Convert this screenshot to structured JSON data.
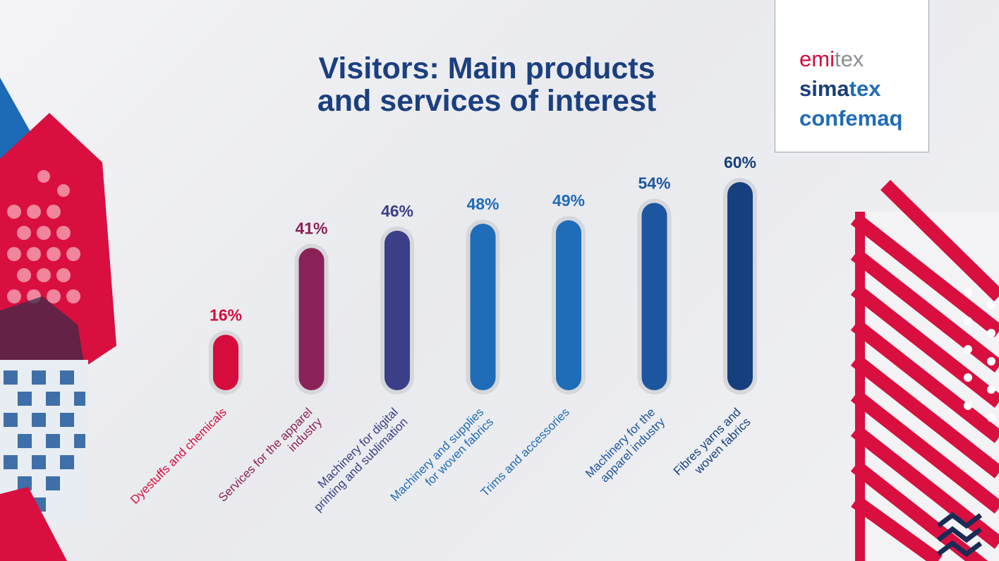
{
  "title": {
    "line1": "Visitors: Main products",
    "line2": "and services of interest"
  },
  "logo": {
    "line1_a": "emi",
    "line1_b": "tex",
    "line2_a": "sima",
    "line2_b": "tex",
    "line3": "confemaq"
  },
  "chart_data": {
    "type": "bar",
    "title": "Visitors: Main products and services of interest",
    "unit": "%",
    "ylim": [
      0,
      60
    ],
    "grid": false,
    "categories": [
      [
        "Dyestuffs and chemicals"
      ],
      [
        "Services for the apparel",
        "industry"
      ],
      [
        "Machinery for digital",
        "printing and sublimation"
      ],
      [
        "Machinery and supplies",
        "for woven fabrics"
      ],
      [
        "Trims and accessories"
      ],
      [
        "Machinery for the",
        "apparel industry"
      ],
      [
        "Fibres yarns and",
        "woven fabrics"
      ]
    ],
    "values": [
      16,
      41,
      46,
      48,
      49,
      54,
      60
    ],
    "labels": [
      "16%",
      "41%",
      "46%",
      "48%",
      "49%",
      "54%",
      "60%"
    ],
    "colors": [
      "#d60c3c",
      "#8a2257",
      "#3a3f87",
      "#1f6cb8",
      "#1f6cb8",
      "#1d56a0",
      "#163f7e"
    ]
  }
}
